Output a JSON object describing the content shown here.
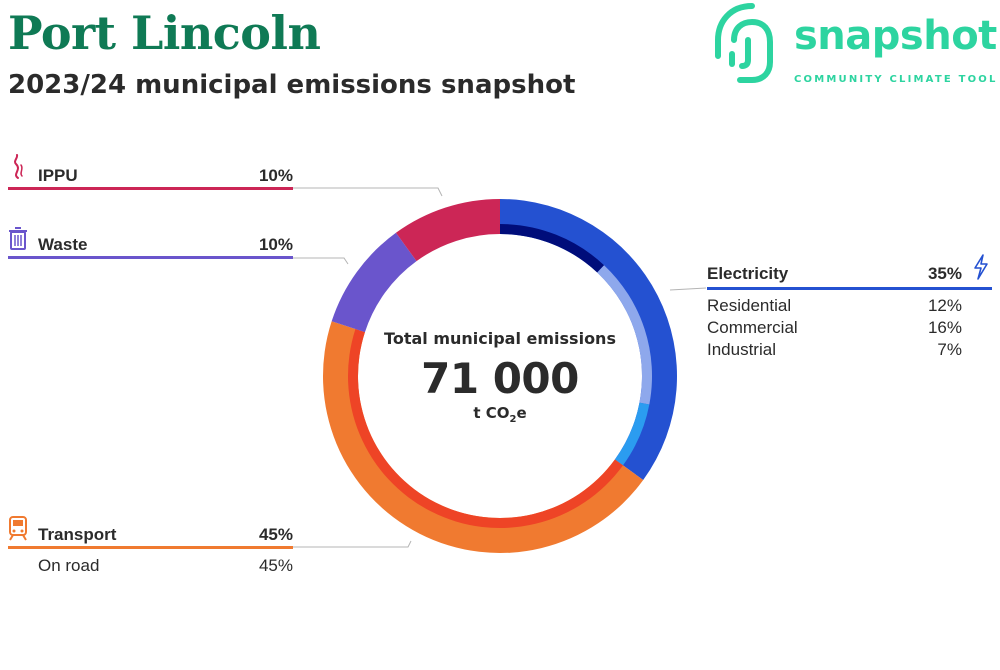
{
  "header": {
    "title": "Port Lincoln",
    "subtitle": "2023/24 municipal emissions snapshot"
  },
  "logo": {
    "word": "snapshot",
    "tagline": "COMMUNITY CLIMATE TOOL"
  },
  "center": {
    "label": "Total municipal emissions",
    "total": "71 000",
    "unit_prefix": "t CO",
    "unit_sub": "2",
    "unit_suffix": "e"
  },
  "colors": {
    "brand_green": "#0f7a55",
    "logo_green": "#2dd4a0",
    "electricity": "#2451d1",
    "electricity_residential": "#000d7a",
    "electricity_commercial": "#8ea8ec",
    "electricity_industrial": "#2b9cf0",
    "transport": "#f07a30",
    "transport_on_road": "#ee4426",
    "waste": "#6a55cc",
    "ippu": "#cc2656"
  },
  "chart_data": {
    "type": "pie",
    "title": "Total municipal emissions",
    "total": 71000,
    "unit": "t CO2e",
    "categories": [
      {
        "name": "Electricity",
        "percent": 35,
        "pct_label": "35%",
        "icon": "lightning-icon",
        "color": "#2451d1",
        "subsectors": [
          {
            "name": "Residential",
            "percent": 12,
            "pct_label": "12%",
            "color": "#000d7a"
          },
          {
            "name": "Commercial",
            "percent": 16,
            "pct_label": "16%",
            "color": "#8ea8ec"
          },
          {
            "name": "Industrial",
            "percent": 7,
            "pct_label": "7%",
            "color": "#2b9cf0"
          }
        ]
      },
      {
        "name": "Transport",
        "percent": 45,
        "pct_label": "45%",
        "icon": "train-icon",
        "color": "#f07a30",
        "subsectors": [
          {
            "name": "On road",
            "percent": 45,
            "pct_label": "45%",
            "color": "#ee4426"
          }
        ]
      },
      {
        "name": "Waste",
        "percent": 10,
        "pct_label": "10%",
        "icon": "trash-bin-icon",
        "color": "#6a55cc",
        "subsectors": []
      },
      {
        "name": "IPPU",
        "percent": 10,
        "pct_label": "10%",
        "icon": "smoke-icon",
        "color": "#cc2656",
        "subsectors": []
      }
    ]
  }
}
